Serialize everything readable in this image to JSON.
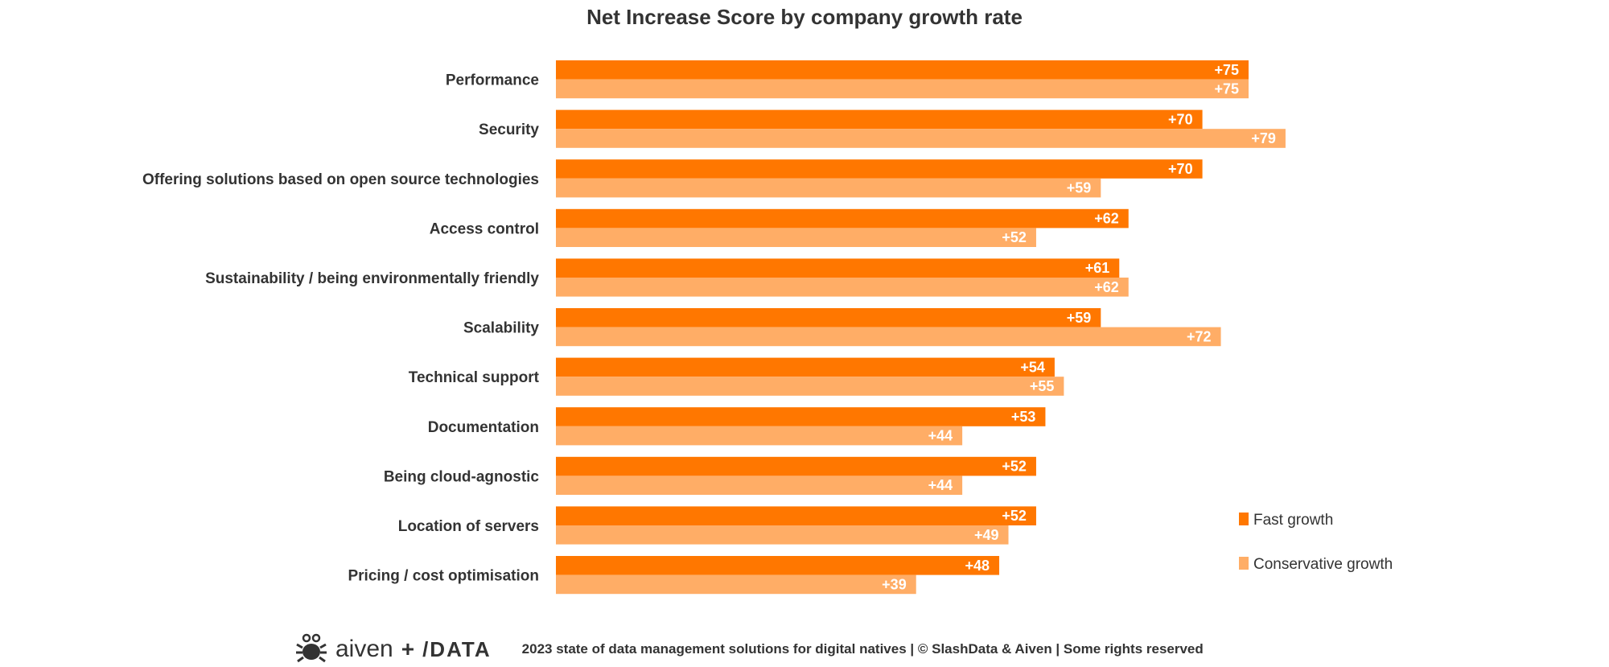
{
  "chart_data": {
    "type": "bar",
    "orientation": "horizontal",
    "title": "Net Increase Score by company growth rate",
    "categories": [
      "Performance",
      "Security",
      "Offering solutions based on open source technologies",
      "Access control",
      "Sustainability / being environmentally friendly",
      "Scalability",
      "Technical support",
      "Documentation",
      "Being cloud-agnostic",
      "Location of servers",
      "Pricing / cost optimisation"
    ],
    "series": [
      {
        "name": "Fast growth",
        "color": "#ff7700",
        "values": [
          75,
          70,
          70,
          62,
          61,
          59,
          54,
          53,
          52,
          52,
          48
        ]
      },
      {
        "name": "Conservative growth",
        "color": "#ffad66",
        "values": [
          75,
          79,
          59,
          52,
          62,
          72,
          55,
          44,
          44,
          49,
          39
        ]
      }
    ],
    "value_prefix": "+",
    "xlim": [
      0,
      80
    ],
    "grid": false,
    "legend_position": "right"
  },
  "footer": {
    "logo_text": "aiven",
    "logo_plus": "+",
    "logo_data": "/DATA",
    "text": "2023 state of data management solutions for digital natives | © SlashData & Aiven | Some rights reserved"
  }
}
